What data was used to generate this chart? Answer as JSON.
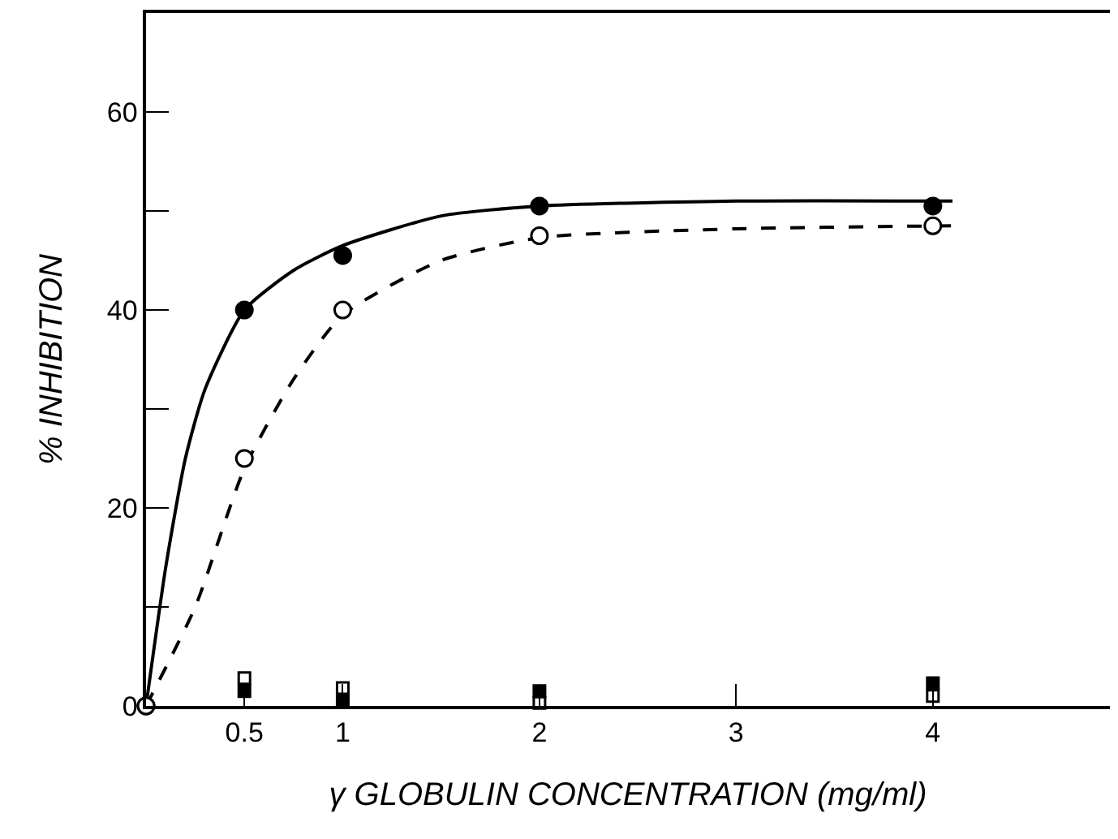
{
  "chart_data": {
    "type": "scatter",
    "xlabel": "γ GLOBULIN CONCENTRATION (mg/ml)",
    "ylabel": "% INHIBITION",
    "xlim": [
      0,
      4.9
    ],
    "ylim": [
      0,
      70
    ],
    "xticks": [
      0.5,
      1,
      2,
      3,
      4
    ],
    "yticks": [
      0,
      {
        "value": 10,
        "label": null
      },
      20,
      {
        "value": 30,
        "label": null
      },
      40,
      {
        "value": 50,
        "label": null
      },
      60
    ],
    "series": [
      {
        "type": "line",
        "color": "#000000",
        "line_style": "solid",
        "marker": "none",
        "x": [
          0,
          0.1,
          0.2,
          0.3,
          0.5,
          0.75,
          1,
          1.5,
          2,
          3,
          4.1
        ],
        "values": [
          0,
          14,
          25,
          32,
          40,
          44,
          46.5,
          49.5,
          50.5,
          51,
          51
        ]
      },
      {
        "type": "line",
        "color": "#000000",
        "line_style": "dashed",
        "marker": "none",
        "x": [
          0,
          0.25,
          0.5,
          0.75,
          1,
          1.5,
          2,
          3,
          4.1
        ],
        "values": [
          0,
          10,
          24,
          33,
          39.5,
          45,
          47.3,
          48.2,
          48.5
        ]
      },
      {
        "color": "#000000",
        "marker": "circle",
        "x": [
          0,
          0.5,
          1,
          2,
          4
        ],
        "values": [
          0,
          40,
          45.5,
          50.5,
          50.5
        ]
      },
      {
        "color": "#ffffff",
        "marker": "circle",
        "x": [
          0,
          0.5,
          1,
          2,
          4
        ],
        "values": [
          0,
          25,
          40,
          47.5,
          48.5
        ]
      },
      {
        "color": "#000000",
        "marker": "square",
        "x": [
          0.5,
          1,
          2,
          4
        ],
        "values": [
          1.5,
          0.5,
          1.5,
          2.3
        ]
      },
      {
        "color": "#ffffff",
        "marker": "square",
        "x": [
          0.5,
          1,
          2,
          4
        ],
        "values": [
          2.8,
          1.8,
          0.3,
          1
        ]
      }
    ]
  }
}
